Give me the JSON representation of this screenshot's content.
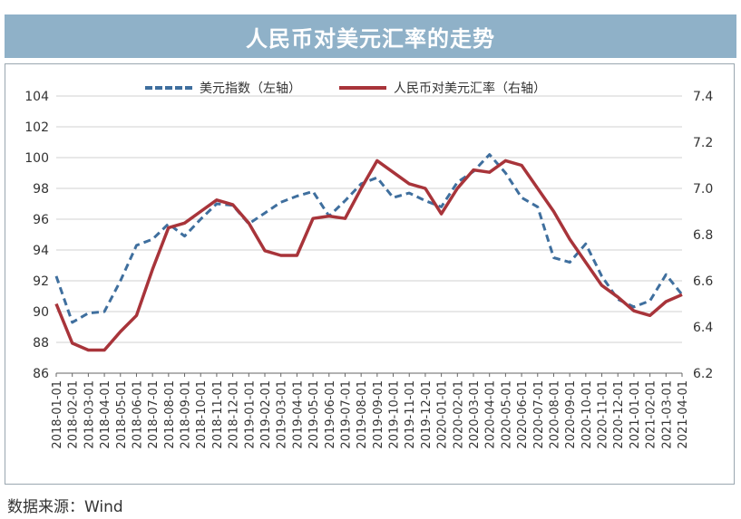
{
  "header": {
    "title": "人民币对美元汇率的走势"
  },
  "source_note": "数据来源：Wind",
  "chart_data": {
    "type": "line",
    "left_axis": {
      "ticks": [
        "86",
        "88",
        "90",
        "92",
        "94",
        "96",
        "98",
        "100",
        "102",
        "104"
      ],
      "range": [
        86,
        104
      ]
    },
    "right_axis": {
      "ticks": [
        "6.2",
        "6.4",
        "6.6",
        "6.8",
        "7.0",
        "7.2",
        "7.4"
      ],
      "range": [
        6.2,
        7.4
      ]
    },
    "x_ticks": [
      "2018-01-01",
      "2018-02-01",
      "2018-03-01",
      "2018-04-01",
      "2018-05-01",
      "2018-06-01",
      "2018-07-01",
      "2018-08-01",
      "2018-09-01",
      "2018-10-01",
      "2018-11-01",
      "2018-12-01",
      "2019-01-01",
      "2019-02-01",
      "2019-03-01",
      "2019-04-01",
      "2019-05-01",
      "2019-06-01",
      "2019-07-01",
      "2019-08-01",
      "2019-09-01",
      "2019-10-01",
      "2019-11-01",
      "2019-12-01",
      "2020-01-01",
      "2020-02-01",
      "2020-03-01",
      "2020-04-01",
      "2020-05-01",
      "2020-06-01",
      "2020-07-01",
      "2020-08-01",
      "2020-09-01",
      "2020-10-01",
      "2020-11-01",
      "2020-12-01",
      "2021-01-01",
      "2021-02-01",
      "2021-03-01",
      "2021-04-01"
    ],
    "series": [
      {
        "name": "美元指数（左轴）",
        "axis": "left",
        "style": "dashed",
        "color": "#3f6f9e",
        "values": [
          92.3,
          89.3,
          89.9,
          90.0,
          92.0,
          94.3,
          94.7,
          95.7,
          94.9,
          96.0,
          97.0,
          96.9,
          95.7,
          96.4,
          97.1,
          97.5,
          97.8,
          96.2,
          97.2,
          98.3,
          98.7,
          97.4,
          97.7,
          97.2,
          96.8,
          98.4,
          99.1,
          100.2,
          99.0,
          97.4,
          96.8,
          93.5,
          93.2,
          94.4,
          92.3,
          90.8,
          90.3,
          90.7,
          92.4,
          91.1
        ]
      },
      {
        "name": "人民币对美元汇率（右轴）",
        "axis": "right",
        "style": "solid",
        "color": "#a8343a",
        "values": [
          6.5,
          6.33,
          6.3,
          6.3,
          6.38,
          6.45,
          6.65,
          6.83,
          6.85,
          6.9,
          6.95,
          6.93,
          6.85,
          6.73,
          6.71,
          6.71,
          6.87,
          6.88,
          6.87,
          7.0,
          7.12,
          7.07,
          7.02,
          7.0,
          6.89,
          7.0,
          7.08,
          7.07,
          7.12,
          7.1,
          7.0,
          6.9,
          6.78,
          6.68,
          6.58,
          6.53,
          6.47,
          6.45,
          6.51,
          6.54
        ]
      }
    ],
    "grid": "horizontal",
    "legend_position": "top"
  }
}
